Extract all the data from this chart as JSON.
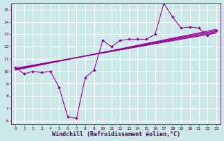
{
  "bg_color": "#cce8e8",
  "grid_color": "#ffffff",
  "line_color": "#990099",
  "marker_color": "#990099",
  "xlabel": "Windchill (Refroidissement éolien,°C)",
  "xlabel_fontsize": 6,
  "tick_fontsize": 5,
  "xlim": [
    -0.5,
    23.5
  ],
  "ylim": [
    5.7,
    15.5
  ],
  "yticks": [
    6,
    7,
    8,
    9,
    10,
    11,
    12,
    13,
    14,
    15
  ],
  "xticks": [
    0,
    1,
    2,
    3,
    4,
    5,
    6,
    7,
    8,
    9,
    10,
    11,
    12,
    13,
    14,
    15,
    16,
    17,
    18,
    19,
    20,
    21,
    22,
    23
  ],
  "series1_x": [
    0,
    1,
    2,
    3,
    4,
    5,
    6,
    7,
    8,
    9,
    10,
    11,
    12,
    13,
    14,
    15,
    16,
    17,
    18,
    19,
    20,
    21,
    22,
    23
  ],
  "series1_y": [
    10.3,
    9.8,
    10.0,
    9.9,
    10.0,
    8.7,
    6.3,
    6.2,
    9.5,
    10.1,
    12.5,
    12.0,
    12.5,
    12.6,
    12.6,
    12.6,
    13.0,
    15.5,
    14.4,
    13.5,
    13.6,
    13.5,
    12.9,
    13.3
  ],
  "trend1_x": [
    0,
    23
  ],
  "trend1_y": [
    10.25,
    13.1
  ],
  "trend2_x": [
    0,
    23
  ],
  "trend2_y": [
    10.2,
    13.2
  ],
  "trend3_x": [
    0,
    23
  ],
  "trend3_y": [
    10.15,
    13.3
  ],
  "trend4_x": [
    0,
    23
  ],
  "trend4_y": [
    10.1,
    13.4
  ]
}
